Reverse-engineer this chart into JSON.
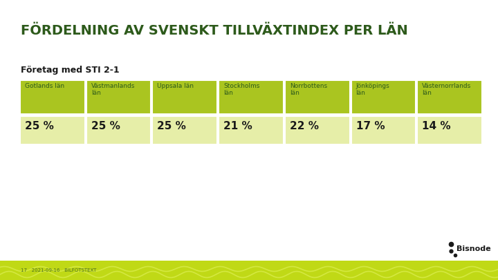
{
  "title": "FÖRDELNING AV SVENSKT TILLVÄXTINDEX PER LÄN",
  "subtitle": "Företag med STI 2-1",
  "background_color": "#ffffff",
  "title_color": "#2d5a1b",
  "subtitle_color": "#1a1a1a",
  "header_bg_color": "#aac520",
  "row_bg_color": "#e6eea8",
  "header_text_color": "#2d5a1b",
  "value_text_color": "#1a1a1a",
  "footer_bar_color": "#c0d916",
  "footer_text_color": "#4a7020",
  "columns": [
    "Gotlands län",
    "Västmanlands\nlän",
    "Uppsala län",
    "Stockholms\nlän",
    "Norrbottens\nlän",
    "Jönköpings\nlän",
    "Västernorrlands\nlän"
  ],
  "values": [
    "25 %",
    "25 %",
    "25 %",
    "21 %",
    "22 %",
    "17 %",
    "14 %"
  ],
  "footer_left": "17   2021-09-16   BILFOTSTEXT",
  "bisnode_text": "Bisnode"
}
